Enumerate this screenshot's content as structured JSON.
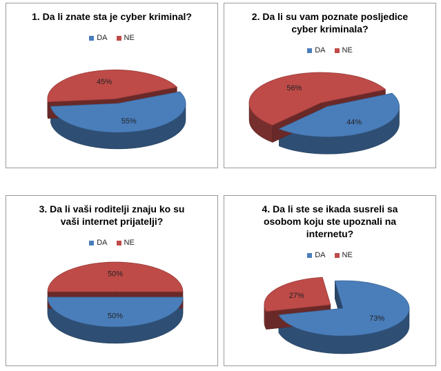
{
  "colors": {
    "DA": "#4a7ebb",
    "NE": "#be4b48"
  },
  "chart_data": [
    {
      "type": "pie",
      "title": "1. Da li znate sta je cyber kriminal?",
      "legend": [
        "DA",
        "NE"
      ],
      "legend_position": "top",
      "slices": [
        {
          "name": "DA",
          "value": 55,
          "label": "55%"
        },
        {
          "name": "NE",
          "value": 45,
          "label": "45%"
        }
      ]
    },
    {
      "type": "pie",
      "title": "2. Da li su vam poznate posljedice\ncyber kriminala?",
      "legend": [
        "DA",
        "NE"
      ],
      "legend_position": "top",
      "slices": [
        {
          "name": "DA",
          "value": 44,
          "label": "44%"
        },
        {
          "name": "NE",
          "value": 56,
          "label": "56%"
        }
      ]
    },
    {
      "type": "pie",
      "title": "3. Da li vaši roditelji znaju ko su\nvaši internet prijatelji?",
      "legend": [
        "DA",
        "NE"
      ],
      "legend_position": "top",
      "slices": [
        {
          "name": "DA",
          "value": 50,
          "label": "50%"
        },
        {
          "name": "NE",
          "value": 50,
          "label": "50%"
        }
      ]
    },
    {
      "type": "pie",
      "title": "4. Da li ste se ikada susreli sa\nosobom koju ste upoznali na\ninternetu?",
      "legend": [
        "DA",
        "NE"
      ],
      "legend_position": "top",
      "slices": [
        {
          "name": "DA",
          "value": 73,
          "label": "73%"
        },
        {
          "name": "NE",
          "value": 27,
          "label": "27%"
        }
      ]
    }
  ]
}
